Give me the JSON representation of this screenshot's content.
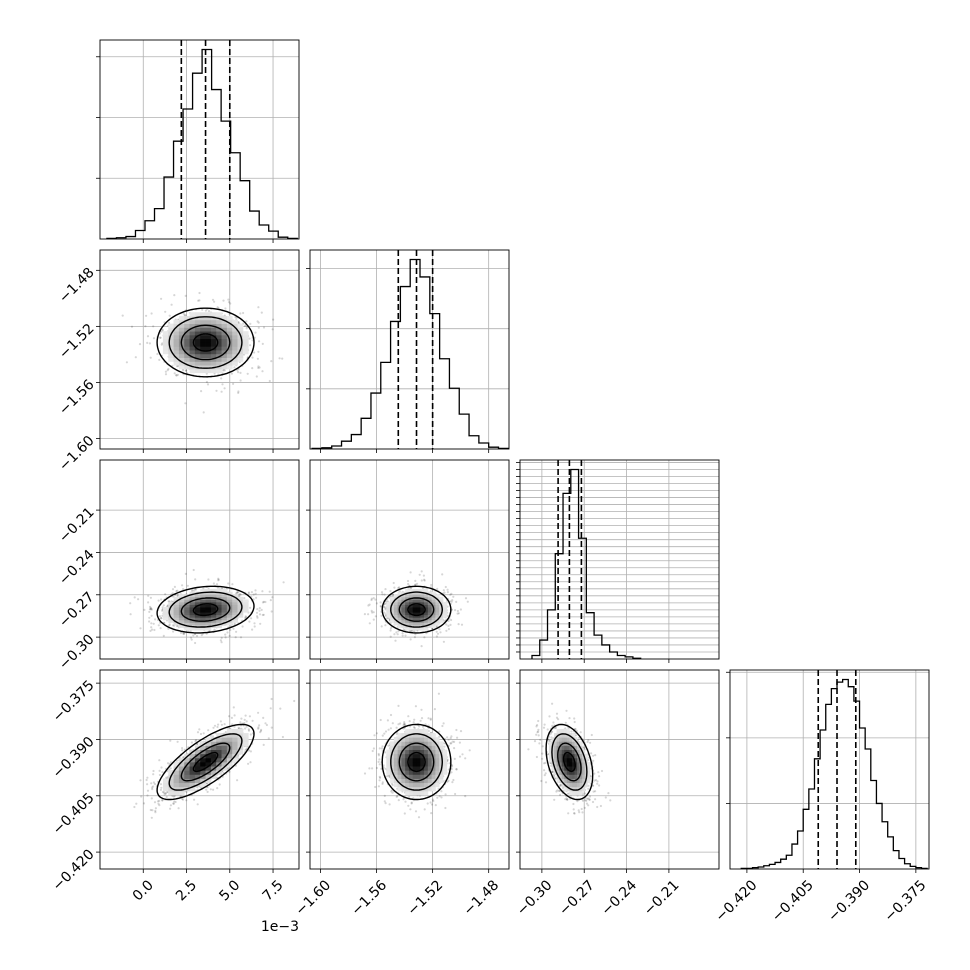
{
  "chart_data": {
    "type": "corner",
    "title": "",
    "grid": true,
    "parameters": [
      {
        "name": "",
        "range": [
          -0.0025,
          0.009
        ],
        "ticks": [
          0.0,
          0.0025,
          0.005,
          0.0075
        ],
        "tick_labels": [
          "0.0",
          "2.5",
          "5.0",
          "7.5"
        ],
        "offset_label": "1e−3",
        "quantiles": [
          0.0022,
          0.0036,
          0.005
        ],
        "hist_bin_edges": [
          -0.0021,
          -0.00155,
          -0.001,
          -0.00045,
          0.0001,
          0.00065,
          0.0012,
          0.00175,
          0.0023,
          0.00285,
          0.0034,
          0.00395,
          0.0045,
          0.00505,
          0.0056,
          0.00615,
          0.0067,
          0.00725,
          0.0078,
          0.00835,
          0.0089
        ],
        "hist_counts": [
          1,
          2,
          4,
          14,
          30,
          50,
          102,
          161,
          214,
          273,
          312,
          246,
          194,
          142,
          96,
          46,
          23,
          13,
          3,
          1
        ]
      },
      {
        "name": "",
        "range": [
          -1.6075,
          -1.4655
        ],
        "ticks": [
          -1.6,
          -1.56,
          -1.52,
          -1.48
        ],
        "tick_labels": [
          "−1.60",
          "−1.56",
          "−1.52",
          "−1.48"
        ],
        "quantiles": [
          -1.5445,
          -1.5315,
          -1.52
        ],
        "hist_bin_edges": [
          -1.606,
          -1.599,
          -1.592,
          -1.585,
          -1.578,
          -1.571,
          -1.564,
          -1.557,
          -1.55,
          -1.543,
          -1.536,
          -1.529,
          -1.522,
          -1.515,
          -1.508,
          -1.501,
          -1.494,
          -1.487,
          -1.48,
          -1.473,
          -1.466
        ],
        "hist_counts": [
          1,
          2,
          5,
          13,
          24,
          51,
          93,
          144,
          212,
          270,
          315,
          286,
          225,
          150,
          101,
          58,
          22,
          10,
          3,
          1
        ]
      },
      {
        "name": "",
        "range": [
          -0.3155,
          -0.1745
        ],
        "ticks": [
          -0.3,
          -0.27,
          -0.24,
          -0.21
        ],
        "tick_labels": [
          "−0.30",
          "−0.27",
          "−0.24",
          "−0.21"
        ],
        "quantiles": [
          -0.2885,
          -0.2805,
          -0.272
        ],
        "hist_bin_edges": [
          -0.307,
          -0.3015,
          -0.296,
          -0.2905,
          -0.285,
          -0.2795,
          -0.274,
          -0.2685,
          -0.263,
          -0.2575,
          -0.252,
          -0.2465,
          -0.241,
          -0.2355,
          -0.23
        ],
        "hist_counts": [
          5,
          27,
          70,
          150,
          236,
          270,
          172,
          66,
          34,
          20,
          10,
          5,
          3,
          1
        ]
      },
      {
        "name": "",
        "range": [
          -0.4245,
          -0.3715
        ],
        "ticks": [
          -0.42,
          -0.405,
          -0.39,
          -0.375
        ],
        "tick_labels": [
          "−0.420",
          "−0.405",
          "−0.390",
          "−0.375"
        ],
        "quantiles": [
          -0.401,
          -0.396,
          -0.391
        ],
        "hist_bin_edges": [
          -0.4215,
          -0.42,
          -0.4185,
          -0.417,
          -0.4155,
          -0.414,
          -0.4125,
          -0.411,
          -0.4095,
          -0.408,
          -0.4065,
          -0.405,
          -0.4035,
          -0.402,
          -0.4005,
          -0.399,
          -0.3975,
          -0.396,
          -0.3945,
          -0.393,
          -0.3915,
          -0.39,
          -0.3885,
          -0.387,
          -0.3855,
          -0.384,
          -0.3825,
          -0.381,
          -0.3795,
          -0.378,
          -0.3765,
          -0.375,
          -0.3735,
          -0.372
        ],
        "hist_counts": [
          1,
          1,
          2,
          3,
          5,
          7,
          10,
          15,
          21,
          38,
          58,
          91,
          122,
          168,
          212,
          251,
          275,
          285,
          289,
          278,
          256,
          215,
          183,
          135,
          100,
          72,
          49,
          28,
          16,
          8,
          4,
          2,
          1
        ]
      }
    ],
    "correlations": [
      {
        "pair": [
          1,
          0
        ],
        "corr": 0.0
      },
      {
        "pair": [
          2,
          0
        ],
        "corr": 0.15
      },
      {
        "pair": [
          2,
          1
        ],
        "corr": 0.0
      },
      {
        "pair": [
          3,
          0
        ],
        "corr": 0.75
      },
      {
        "pair": [
          3,
          1
        ],
        "corr": 0.0
      },
      {
        "pair": [
          3,
          2
        ],
        "corr": -0.35
      }
    ]
  }
}
